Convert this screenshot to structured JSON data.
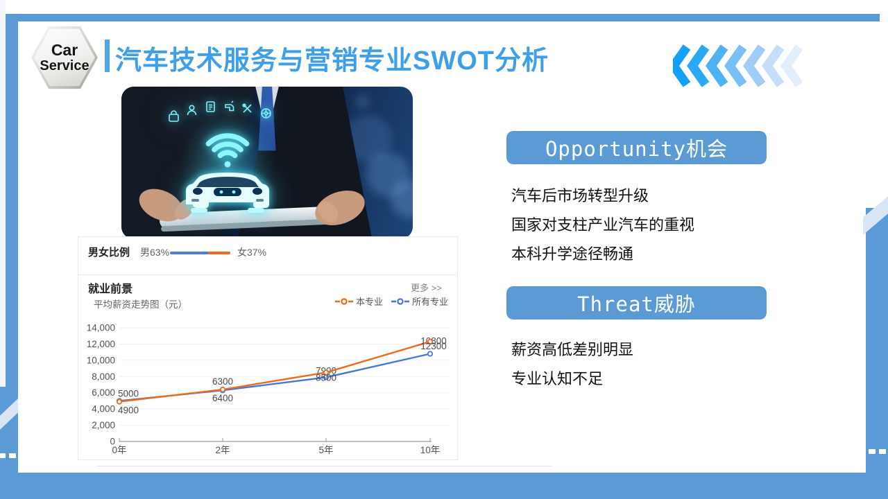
{
  "slide": {
    "logo": {
      "line1": "Car",
      "line2": "Service"
    },
    "title": "汽车技术服务与营销专业SWOT分析",
    "accent_blue": "#5B9BD5",
    "title_color": "#3E9FE8",
    "chevrons": {
      "count": 7,
      "colors": [
        "#12A1F6",
        "#2BA8F5",
        "#4FB2F4",
        "#78BFF4",
        "#9FCDF6",
        "#C5DEF9",
        "#E3EEFC"
      ]
    }
  },
  "stats_panel": {
    "gender": {
      "label": "男女比例",
      "male_label": "男63%",
      "female_label": "女37%",
      "male_pct": 63,
      "female_pct": 37,
      "male_color": "#4B7CE2",
      "female_color": "#F26A1F"
    },
    "employment": {
      "title": "就业前景",
      "more_link": "更多 >>"
    }
  },
  "chart_data": {
    "type": "line",
    "title": "平均薪资走势图（元）",
    "categories": [
      "0年",
      "2年",
      "5年",
      "10年"
    ],
    "series": [
      {
        "name": "本专业",
        "color": "#ED6A1F",
        "values": [
          4900,
          6400,
          8500,
          12300
        ],
        "label_position": "below"
      },
      {
        "name": "所有专业",
        "color": "#4377D9",
        "values": [
          5000,
          6300,
          7900,
          10800
        ],
        "label_position": "above"
      }
    ],
    "ylim": [
      0,
      14000
    ],
    "ytick_step": 2000,
    "grid": true,
    "legend_position": "top-right",
    "xlabel": "",
    "ylabel": ""
  },
  "right_panel": {
    "opportunity": {
      "title": "Opportunity机会",
      "items": [
        "汽车后市场转型升级",
        "国家对支柱产业汽车的重视",
        "本科升学途径畅通"
      ]
    },
    "threat": {
      "title": "Threat威胁",
      "items": [
        "薪资高低差别明显",
        "专业认知不足"
      ]
    }
  }
}
